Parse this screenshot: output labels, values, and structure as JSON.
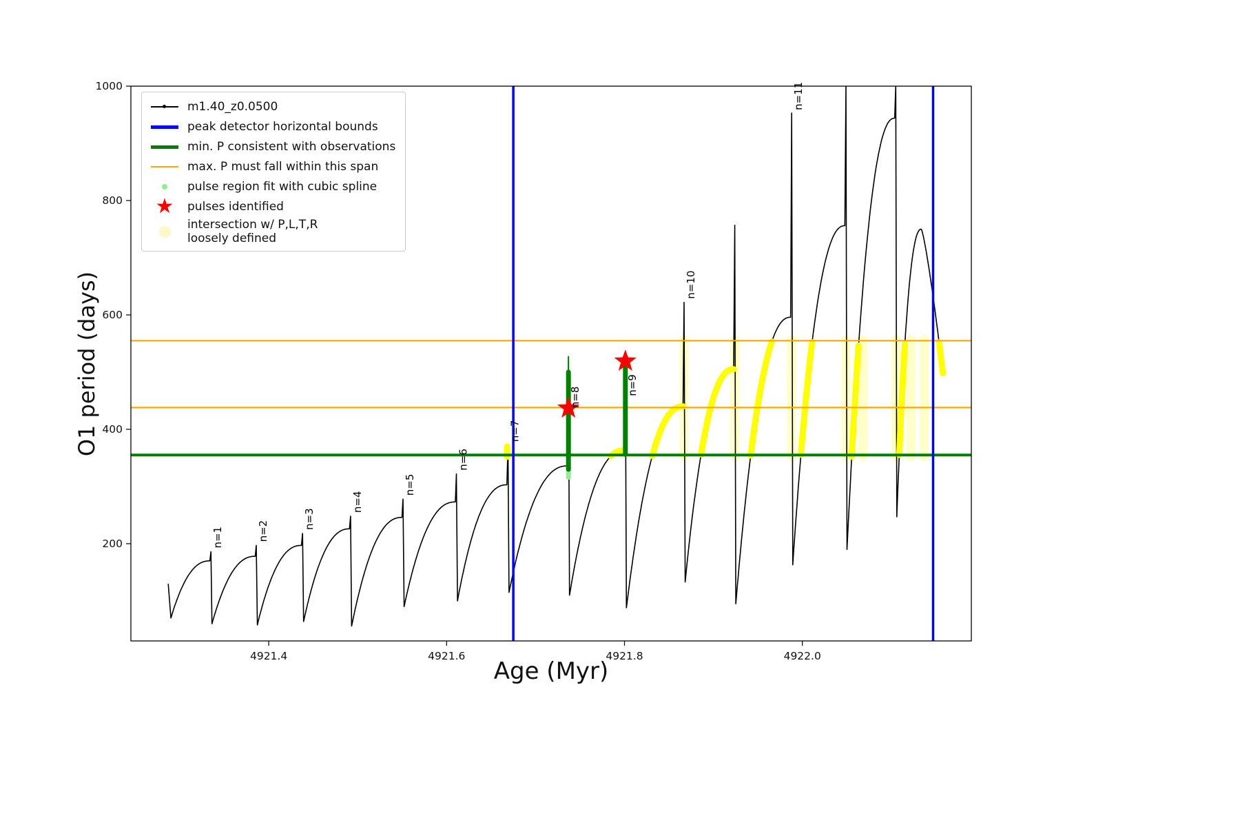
{
  "figure": {
    "xlabel": "Age (Myr)",
    "ylabel": "O1 period (days)"
  },
  "legend": {
    "entries": [
      {
        "label": "m1.40_z0.0500",
        "symbol": "line-dot",
        "color": "#000000"
      },
      {
        "label": "peak detector horizontal bounds",
        "symbol": "thick-line",
        "color": "#0000ff"
      },
      {
        "label": "min. P consistent with observations",
        "symbol": "thick-line",
        "color": "#008000"
      },
      {
        "label": "max. P must fall within this span",
        "symbol": "line",
        "color": "#ffa500"
      },
      {
        "label": "pulse region fit with cubic spline",
        "symbol": "small-dot",
        "color": "#90ee90"
      },
      {
        "label": "pulses identified",
        "symbol": "star",
        "color": "#ff0000"
      },
      {
        "label": "intersection w/ P,L,T,R\nloosely defined",
        "symbol": "big-dot",
        "color": "#fafac8"
      }
    ]
  },
  "chart_data": {
    "type": "line",
    "title": "",
    "xlabel": "Age (Myr)",
    "ylabel": "O1 period (days)",
    "series_name": "m1.40_z0.0500",
    "xlim": [
      4921.245,
      4922.19
    ],
    "ylim": [
      30,
      1000
    ],
    "xticks": [
      4921.4,
      4921.6,
      4921.8,
      4922.0
    ],
    "yticks": [
      200,
      400,
      600,
      800,
      1000
    ],
    "grid": false,
    "legend_position": "upper left",
    "peak_detector_bounds_x": [
      4921.675,
      4922.147
    ],
    "min_P_consistent_y": 355,
    "max_P_span_y": [
      438,
      555
    ],
    "curve_start": {
      "x": 4921.287,
      "y": 130
    },
    "cycles": [
      {
        "n": "n=1",
        "x1": 4921.335,
        "low": 70,
        "shoulder": 170,
        "spike": 186
      },
      {
        "n": "n=2",
        "x1": 4921.386,
        "low": 60,
        "shoulder": 178,
        "spike": 197
      },
      {
        "n": "n=3",
        "x1": 4921.438,
        "low": 58,
        "shoulder": 197,
        "spike": 218
      },
      {
        "n": "n=4",
        "x1": 4921.492,
        "low": 64,
        "shoulder": 226,
        "spike": 248
      },
      {
        "n": "n=5",
        "x1": 4921.551,
        "low": 56,
        "shoulder": 246,
        "spike": 278
      },
      {
        "n": "n=6",
        "x1": 4921.611,
        "low": 90,
        "shoulder": 273,
        "spike": 322
      },
      {
        "n": "n=7",
        "x1": 4921.669,
        "low": 100,
        "shoulder": 303,
        "spike": 372
      },
      {
        "n": "n=8",
        "x1": 4921.737,
        "low": 115,
        "shoulder": 336,
        "spike": 527,
        "label_y": 437
      },
      {
        "n": "n=9",
        "x1": 4921.801,
        "low": 110,
        "shoulder": 363,
        "spike": 513,
        "label_y": 458
      },
      {
        "n": "n=10",
        "x1": 4921.867,
        "low": 88,
        "shoulder": 440,
        "spike": 622
      },
      {
        "n": null,
        "x1": 4921.924,
        "low": 133,
        "shoulder": 505,
        "spike": 757
      },
      {
        "n": "n=11",
        "x1": 4921.988,
        "low": 95,
        "shoulder": 596,
        "spike": 953,
        "label_y": 958
      },
      {
        "n": null,
        "x1": 4922.049,
        "low": 163,
        "shoulder": 756,
        "spike": 1000
      },
      {
        "n": null,
        "x1": 4922.105,
        "low": 190,
        "shoulder": 944,
        "spike": 1000
      },
      {
        "n": null,
        "x1": 4922.135,
        "low": 247,
        "shoulder": 750,
        "spike": null
      }
    ],
    "curve_tail": {
      "x": 4922.158,
      "y": 498
    },
    "pulses_identified": [
      {
        "x": 4921.737,
        "y": 437
      },
      {
        "x": 4921.801,
        "y": 519
      }
    ],
    "spline_fit_segments": [
      {
        "x": 4921.737,
        "y0": 316,
        "y1": 336,
        "color": "#90ee90",
        "width": 7
      },
      {
        "x": 4921.737,
        "y0": 330,
        "y1": 500,
        "color": "#008000",
        "width": 7
      },
      {
        "x": 4921.737,
        "y0": 500,
        "y1": 527,
        "color": "#008000",
        "width": 2
      },
      {
        "x": 4921.801,
        "y0": 356,
        "y1": 510,
        "color": "#008000",
        "width": 7
      }
    ],
    "loose_intersection_bands": [
      {
        "x": 4921.867,
        "y0": 352,
        "y1": 557
      },
      {
        "x": 4921.924,
        "y0": 352,
        "y1": 557
      },
      {
        "x": 4921.988,
        "y0": 352,
        "y1": 557
      },
      {
        "x": 4922.049,
        "y0": 352,
        "y1": 557
      },
      {
        "x": 4922.068,
        "y0": 352,
        "y1": 557
      },
      {
        "x": 4922.105,
        "y0": 352,
        "y1": 557
      },
      {
        "x": 4922.122,
        "y0": 352,
        "y1": 557
      },
      {
        "x": 4922.137,
        "y0": 352,
        "y1": 557
      }
    ],
    "intersection_rule": {
      "x_min": 4921.7,
      "y_min": 352,
      "y_max": 557
    },
    "extra_yellow_segments": [
      {
        "x": 4921.668,
        "y0": 352,
        "y1": 370
      }
    ],
    "colors": {
      "series": "#000000",
      "peak_bounds": "#0000ff",
      "min_P": "#008000",
      "max_P": "#ffa500",
      "spline": "#90ee90",
      "pulse_star": "#ff0000",
      "intersection": "#ffff00",
      "loose": "#ffffc0"
    }
  }
}
